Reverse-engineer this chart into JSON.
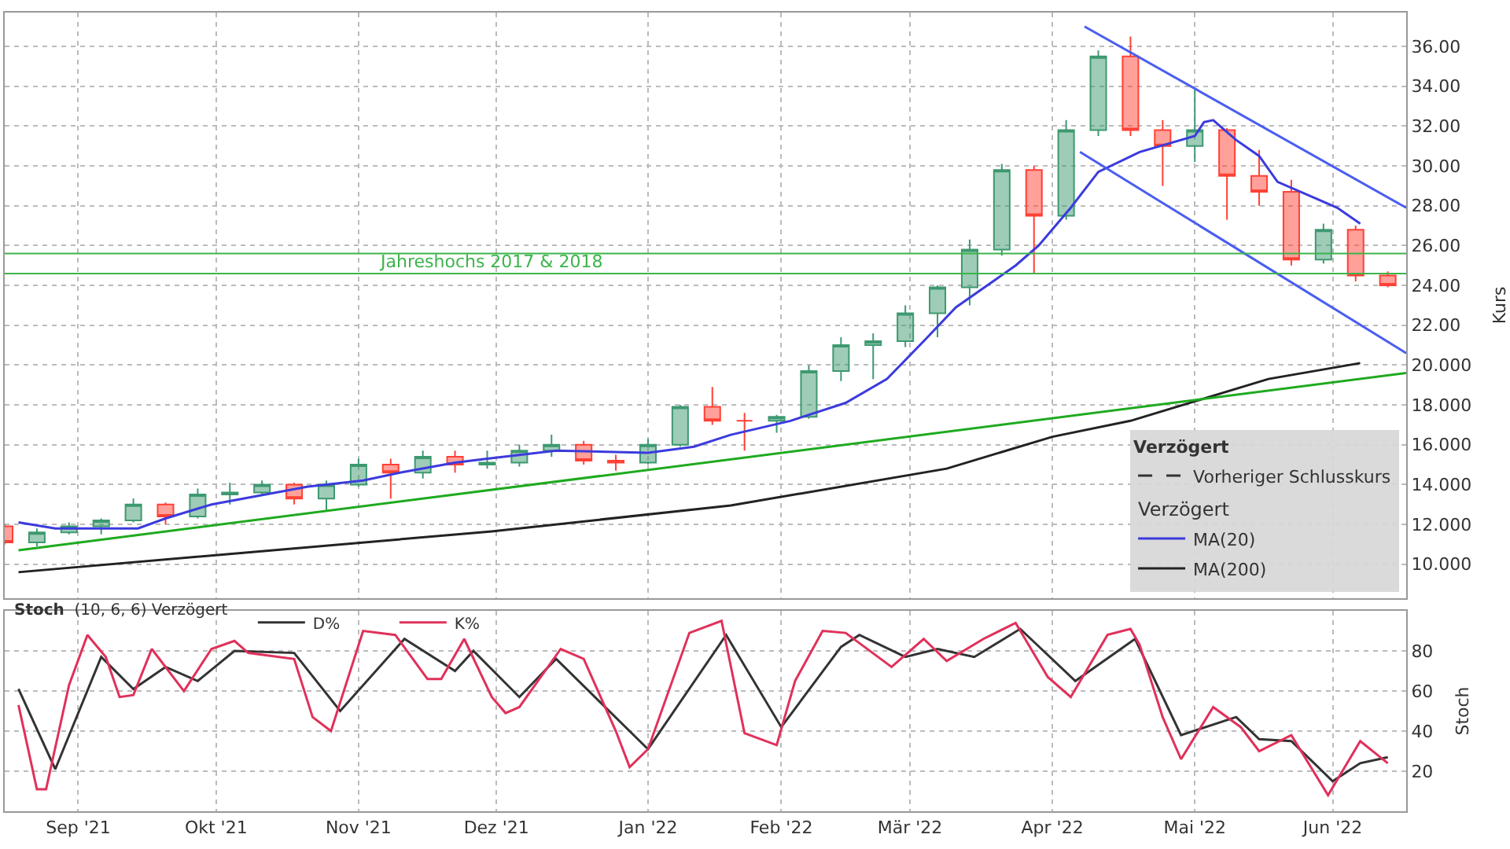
{
  "chart_data": [
    {
      "type": "candlestick",
      "ylabel": "Kurs",
      "legend_title": "Verzögert",
      "legend": "bottom right",
      "grid": true,
      "tick_labels": "y",
      "xlim": [
        "2021-08-16",
        "2022-06-17"
      ],
      "xticks": [
        {
          "value": "2021-09-01",
          "label": null
        },
        {
          "value": "2021-10-01",
          "label": null
        },
        {
          "value": "2021-11-01",
          "label": null
        },
        {
          "value": "2021-12-01",
          "label": null
        },
        {
          "value": "2022-01-03",
          "label": null
        },
        {
          "value": "2022-02-01",
          "label": null
        },
        {
          "value": "2022-03-01",
          "label": null
        },
        {
          "value": "2022-04-01",
          "label": null
        },
        {
          "value": "2022-05-02",
          "label": null
        },
        {
          "value": "2022-06-01",
          "label": null
        }
      ],
      "ylim": [
        8.3,
        37.7
      ],
      "yticks": [
        {
          "value": 10,
          "label": "10.000"
        },
        {
          "value": 12,
          "label": "12.000"
        },
        {
          "value": 14,
          "label": "14.000"
        },
        {
          "value": 16,
          "label": "16.000"
        },
        {
          "value": 18,
          "label": "18.000"
        },
        {
          "value": 20,
          "label": "20.000"
        },
        {
          "value": 22,
          "label": "22.00"
        },
        {
          "value": 24,
          "label": "24.00"
        },
        {
          "value": 26,
          "label": "26.00"
        },
        {
          "value": 28,
          "label": "28.00"
        },
        {
          "value": 30,
          "label": "30.00"
        },
        {
          "value": 32,
          "label": "32.00"
        },
        {
          "value": 34,
          "label": "34.00"
        },
        {
          "value": 36,
          "label": "36.00"
        }
      ],
      "x": [
        "2021-08-16",
        "2021-08-23",
        "2021-08-30",
        "2021-09-06",
        "2021-09-13",
        "2021-09-20",
        "2021-09-27",
        "2021-10-04",
        "2021-10-11",
        "2021-10-18",
        "2021-10-25",
        "2021-11-01",
        "2021-11-08",
        "2021-11-15",
        "2021-11-22",
        "2021-11-29",
        "2021-12-06",
        "2021-12-13",
        "2021-12-20",
        "2021-12-27",
        "2022-01-03",
        "2022-01-10",
        "2022-01-17",
        "2022-01-24",
        "2022-01-31",
        "2022-02-07",
        "2022-02-14",
        "2022-02-21",
        "2022-02-28",
        "2022-03-07",
        "2022-03-14",
        "2022-03-21",
        "2022-03-28",
        "2022-04-04",
        "2022-04-11",
        "2022-04-18",
        "2022-04-25",
        "2022-05-02",
        "2022-05-09",
        "2022-05-16",
        "2022-05-23",
        "2022-05-30",
        "2022-06-06",
        "2022-06-13"
      ],
      "ohlc": [
        [
          11.9,
          12.0,
          11.0,
          11.1
        ],
        [
          11.1,
          11.8,
          10.9,
          11.6
        ],
        [
          11.6,
          12.1,
          11.5,
          11.9
        ],
        [
          11.9,
          12.3,
          11.5,
          12.2
        ],
        [
          12.2,
          13.3,
          12.1,
          13.0
        ],
        [
          13.0,
          13.1,
          12.0,
          12.4
        ],
        [
          12.4,
          13.8,
          12.3,
          13.5
        ],
        [
          13.5,
          14.1,
          13.0,
          13.6
        ],
        [
          13.6,
          14.2,
          13.5,
          14.0
        ],
        [
          14.0,
          14.1,
          13.0,
          13.3
        ],
        [
          13.3,
          14.2,
          12.7,
          14.0
        ],
        [
          14.0,
          15.3,
          13.9,
          15.0
        ],
        [
          15.0,
          15.3,
          13.3,
          14.6
        ],
        [
          14.6,
          15.7,
          14.3,
          15.4
        ],
        [
          15.4,
          15.7,
          14.6,
          15.0
        ],
        [
          15.0,
          15.7,
          14.8,
          15.1
        ],
        [
          15.1,
          16.0,
          14.9,
          15.7
        ],
        [
          15.7,
          16.5,
          15.4,
          16.0
        ],
        [
          16.0,
          16.2,
          15.0,
          15.2
        ],
        [
          15.2,
          15.5,
          14.7,
          15.1
        ],
        [
          15.1,
          16.3,
          15.0,
          16.0
        ],
        [
          16.0,
          18.0,
          15.9,
          17.9
        ],
        [
          17.9,
          18.9,
          17.0,
          17.2
        ],
        [
          17.2,
          17.6,
          15.7,
          17.2
        ],
        [
          17.2,
          17.5,
          16.6,
          17.4
        ],
        [
          17.4,
          20.0,
          17.3,
          19.7
        ],
        [
          19.7,
          21.4,
          19.2,
          21.0
        ],
        [
          21.0,
          21.6,
          19.3,
          21.2
        ],
        [
          21.2,
          23.0,
          20.9,
          22.6
        ],
        [
          22.6,
          24.0,
          21.4,
          23.9
        ],
        [
          23.9,
          26.3,
          23.0,
          25.8
        ],
        [
          25.8,
          30.1,
          25.5,
          29.8
        ],
        [
          29.8,
          30.0,
          24.6,
          27.5
        ],
        [
          27.5,
          32.3,
          27.3,
          31.8
        ],
        [
          31.8,
          35.8,
          31.5,
          35.5
        ],
        [
          35.5,
          36.5,
          31.5,
          31.8
        ],
        [
          31.8,
          32.3,
          29.0,
          31.0
        ],
        [
          31.0,
          33.8,
          30.2,
          31.8
        ],
        [
          31.8,
          31.9,
          27.3,
          29.5
        ],
        [
          29.5,
          30.8,
          28.0,
          28.7
        ],
        [
          28.7,
          29.3,
          25.0,
          25.3
        ],
        [
          25.3,
          27.1,
          25.1,
          26.8
        ],
        [
          26.8,
          27.0,
          24.2,
          24.5
        ],
        [
          24.5,
          24.7,
          23.9,
          24.0
        ]
      ],
      "ref_lines": [
        {
          "axis": "y",
          "value": 25.6,
          "color": "#3cb44b"
        },
        {
          "axis": "y",
          "value": 24.6,
          "label": "Jahreshochs 2017 & 2018",
          "color": "#3cb44b"
        }
      ],
      "annotations": [
        "Verzögert"
      ],
      "series": [
        {
          "name": "Vorheriger Schlusskurs",
          "type": "line",
          "line_style": "dashed",
          "color": "#333333",
          "values": [
            null,
            null,
            null,
            null,
            null,
            null,
            null,
            null,
            null,
            null,
            null,
            null,
            null,
            null,
            null,
            null,
            null,
            null,
            null,
            null,
            null,
            null,
            null,
            null,
            null,
            null,
            null,
            null,
            null,
            null,
            null,
            null,
            null,
            null,
            null,
            null,
            null,
            null,
            null,
            null,
            null,
            null,
            null,
            null
          ]
        },
        {
          "name": "MA(20)",
          "type": "line",
          "color": "#3b3bdd",
          "x": [
            "2021-08-19",
            "2021-08-27",
            "2021-09-14",
            "2021-09-20",
            "2021-09-30",
            "2021-10-21",
            "2021-11-02",
            "2021-11-10",
            "2021-11-22",
            "2021-11-29",
            "2021-12-14",
            "2022-01-03",
            "2022-01-13",
            "2022-01-21",
            "2022-02-03",
            "2022-02-15",
            "2022-02-24",
            "2022-03-04",
            "2022-03-11",
            "2022-03-24",
            "2022-03-29",
            "2022-04-05",
            "2022-04-11",
            "2022-04-20",
            "2022-05-02",
            "2022-05-04",
            "2022-05-06",
            "2022-05-11",
            "2022-05-16",
            "2022-05-20",
            "2022-06-02",
            "2022-06-07"
          ],
          "values": [
            12.1,
            11.8,
            11.8,
            12.3,
            13.0,
            13.9,
            14.2,
            14.6,
            15.1,
            15.3,
            15.7,
            15.6,
            15.9,
            16.5,
            17.2,
            18.1,
            19.3,
            21.2,
            22.9,
            25.0,
            26.0,
            27.9,
            29.7,
            30.7,
            31.5,
            32.2,
            32.3,
            31.3,
            30.5,
            29.2,
            27.9,
            27.1
          ]
        },
        {
          "name": "MA(200)",
          "type": "line",
          "color": "#222222",
          "x": [
            "2021-08-19",
            "2021-11-30",
            "2022-01-21",
            "2022-03-09",
            "2022-04-01",
            "2022-04-18",
            "2022-05-18",
            "2022-06-07"
          ],
          "values": [
            9.6,
            11.65,
            12.95,
            14.8,
            16.4,
            17.2,
            19.3,
            20.1
          ]
        },
        {
          "type": "line",
          "color": "#1faa1f",
          "x": [
            "2021-08-19",
            "2022-06-17"
          ],
          "values": [
            10.7,
            19.6
          ]
        },
        {
          "type": "line",
          "color": "#4a5ef0",
          "x": [
            "2022-04-08",
            "2022-06-17"
          ],
          "values": [
            37.0,
            27.9
          ]
        },
        {
          "type": "line",
          "color": "#4a5ef0",
          "x": [
            "2022-04-07",
            "2022-06-17"
          ],
          "values": [
            30.7,
            20.6
          ]
        }
      ]
    },
    {
      "type": "line",
      "title": "Stoch",
      "subtitle": "(10, 6, 6) Verzögert",
      "ylabel": "Stoch",
      "legend": "top left",
      "grid": true,
      "xlim": [
        "2021-08-16",
        "2022-06-17"
      ],
      "xticks": [
        {
          "value": "2021-09-01",
          "label": "Sep '21"
        },
        {
          "value": "2021-10-01",
          "label": "Okt '21"
        },
        {
          "value": "2021-11-01",
          "label": "Nov '21"
        },
        {
          "value": "2021-12-01",
          "label": "Dez '21"
        },
        {
          "value": "2022-01-03",
          "label": "Jan '22"
        },
        {
          "value": "2022-02-01",
          "label": "Feb '22"
        },
        {
          "value": "2022-03-01",
          "label": "Mär '22"
        },
        {
          "value": "2022-04-01",
          "label": "Apr '22"
        },
        {
          "value": "2022-05-02",
          "label": "Mai '22"
        },
        {
          "value": "2022-06-01",
          "label": "Jun '22"
        }
      ],
      "ylim": [
        0,
        100
      ],
      "yticks": [
        20,
        40,
        60,
        80
      ],
      "series": [
        {
          "name": "D%",
          "color": "#333333",
          "x": [
            "2021-08-19",
            "2021-08-27",
            "2021-09-06",
            "2021-09-13",
            "2021-09-20",
            "2021-09-27",
            "2021-10-05",
            "2021-10-18",
            "2021-10-28",
            "2021-11-11",
            "2021-11-22",
            "2021-11-26",
            "2021-12-06",
            "2021-12-14",
            "2022-01-03",
            "2022-01-20",
            "2022-02-01",
            "2022-02-14",
            "2022-02-18",
            "2022-02-28",
            "2022-03-07",
            "2022-03-15",
            "2022-03-25",
            "2022-04-06",
            "2022-04-19",
            "2022-04-29",
            "2022-05-11",
            "2022-05-16",
            "2022-05-23",
            "2022-06-01",
            "2022-06-07",
            "2022-06-13"
          ],
          "values": [
            61,
            21,
            77,
            61,
            72,
            65,
            80,
            79,
            50,
            86,
            70,
            80,
            57,
            76,
            31,
            88,
            42,
            82,
            88,
            77,
            81,
            77,
            91,
            65,
            86,
            38,
            47,
            36,
            35,
            15,
            24,
            27
          ]
        },
        {
          "name": "K%",
          "color": "#e0315a",
          "x": [
            "2021-08-19",
            "2021-08-23",
            "2021-08-25",
            "2021-08-30",
            "2021-09-03",
            "2021-09-07",
            "2021-09-10",
            "2021-09-13",
            "2021-09-17",
            "2021-09-24",
            "2021-09-30",
            "2021-10-05",
            "2021-10-08",
            "2021-10-18",
            "2021-10-22",
            "2021-10-26",
            "2021-11-02",
            "2021-11-09",
            "2021-11-16",
            "2021-11-19",
            "2021-11-24",
            "2021-11-30",
            "2021-12-03",
            "2021-12-06",
            "2021-12-15",
            "2021-12-20",
            "2021-12-27",
            "2021-12-30",
            "2022-01-03",
            "2022-01-12",
            "2022-01-19",
            "2022-01-24",
            "2022-01-31",
            "2022-02-04",
            "2022-02-10",
            "2022-02-15",
            "2022-02-25",
            "2022-03-04",
            "2022-03-09",
            "2022-03-17",
            "2022-03-24",
            "2022-03-31",
            "2022-04-05",
            "2022-04-13",
            "2022-04-18",
            "2022-04-20",
            "2022-04-25",
            "2022-04-29",
            "2022-05-06",
            "2022-05-12",
            "2022-05-16",
            "2022-05-23",
            "2022-05-31",
            "2022-06-07",
            "2022-06-13"
          ],
          "values": [
            53,
            11,
            11,
            63,
            88,
            77,
            57,
            58,
            81,
            60,
            81,
            85,
            79,
            76,
            47,
            40,
            90,
            88,
            66,
            66,
            86,
            57,
            49,
            52,
            81,
            76,
            40,
            22,
            31,
            89,
            95,
            39,
            33,
            65,
            90,
            89,
            72,
            86,
            75,
            86,
            94,
            67,
            57,
            88,
            91,
            83,
            47,
            26,
            52,
            42,
            30,
            38,
            8,
            35,
            24
          ]
        }
      ]
    }
  ]
}
